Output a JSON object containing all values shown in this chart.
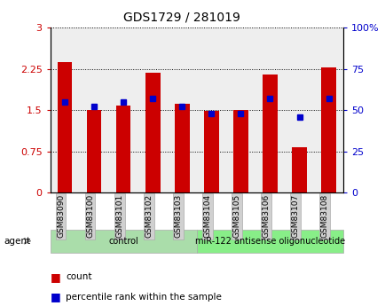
{
  "title": "GDS1729 / 281019",
  "samples": [
    "GSM83090",
    "GSM83100",
    "GSM83101",
    "GSM83102",
    "GSM83103",
    "GSM83104",
    "GSM83105",
    "GSM83106",
    "GSM83107",
    "GSM83108"
  ],
  "bar_values": [
    2.38,
    1.5,
    1.58,
    2.18,
    1.62,
    1.48,
    1.5,
    2.15,
    0.82,
    2.28
  ],
  "dot_values": [
    55,
    52,
    55,
    57,
    52,
    48,
    48,
    57,
    46,
    57
  ],
  "bar_color": "#cc0000",
  "dot_color": "#0000cc",
  "ylim_left": [
    0,
    3
  ],
  "ylim_right": [
    0,
    100
  ],
  "yticks_left": [
    0,
    0.75,
    1.5,
    2.25,
    3
  ],
  "yticks_right": [
    0,
    25,
    50,
    75,
    100
  ],
  "ylabel_left_ticks": [
    "0",
    "0.75",
    "1.5",
    "2.25",
    "3"
  ],
  "ylabel_right_ticks": [
    "0",
    "25",
    "50",
    "75",
    "100%"
  ],
  "groups": [
    {
      "label": "control",
      "start": 0,
      "end": 5,
      "color": "#aaddaa"
    },
    {
      "label": "miR-122 antisense oligonucleotide",
      "start": 5,
      "end": 10,
      "color": "#88ee88"
    }
  ],
  "agent_label": "agent",
  "legend_items": [
    {
      "label": "count",
      "color": "#cc0000"
    },
    {
      "label": "percentile rank within the sample",
      "color": "#0000cc"
    }
  ],
  "background_color": "#ffffff",
  "plot_bg_color": "#eeeeee",
  "bar_width": 0.5
}
